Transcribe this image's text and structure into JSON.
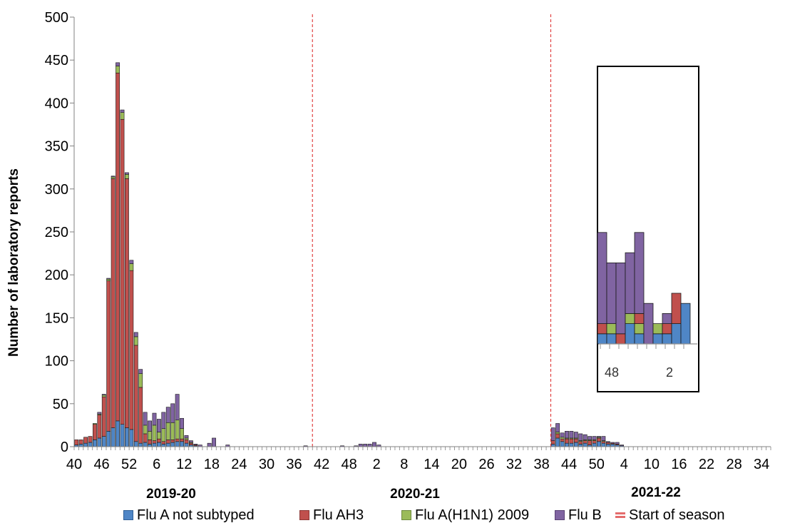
{
  "chart_data": {
    "type": "bar",
    "stacked": true,
    "ylabel": "Number of laboratory reports",
    "ylim": [
      0,
      500
    ],
    "yticks": [
      0,
      50,
      100,
      150,
      200,
      250,
      300,
      350,
      400,
      450,
      500
    ],
    "x_tick_labels": [
      "40",
      "46",
      "52",
      "6",
      "12",
      "18",
      "24",
      "30",
      "36",
      "42",
      "48",
      "2",
      "8",
      "14",
      "20",
      "26",
      "32",
      "38",
      "44",
      "50",
      "4",
      "10",
      "16",
      "22",
      "28",
      "34"
    ],
    "season_labels": [
      "2019-20",
      "2020-21",
      "2021-22"
    ],
    "season_starts_at_week_index": [
      52,
      104
    ],
    "start_season_color": "#E04040",
    "series": [
      {
        "name": "Flu A not subtyped",
        "color": "#4F86C6",
        "values": [
          2,
          3,
          4,
          5,
          8,
          10,
          12,
          18,
          22,
          30,
          26,
          22,
          20,
          6,
          4,
          5,
          3,
          4,
          5,
          3,
          4,
          5,
          6,
          6,
          4,
          2,
          1,
          0,
          0,
          0,
          0,
          0,
          0,
          0,
          0,
          0,
          0,
          0,
          0,
          0,
          0,
          0,
          0,
          0,
          0,
          0,
          0,
          0,
          0,
          0,
          0,
          0,
          0,
          0,
          0,
          0,
          0,
          0,
          0,
          0,
          0,
          0,
          0,
          0,
          0,
          0,
          0,
          0,
          0,
          0,
          0,
          0,
          0,
          0,
          0,
          0,
          0,
          0,
          0,
          0,
          0,
          0,
          0,
          0,
          0,
          0,
          0,
          0,
          0,
          0,
          0,
          0,
          0,
          0,
          0,
          0,
          0,
          0,
          0,
          0,
          0,
          0,
          0,
          0,
          3,
          10,
          6,
          4,
          4,
          5,
          3,
          4,
          2,
          4,
          6,
          4,
          3,
          3,
          2,
          1,
          0,
          0,
          0,
          0,
          0,
          0,
          0,
          0,
          0,
          0,
          0,
          0,
          0,
          0,
          0,
          0,
          0,
          0,
          0,
          0,
          0,
          0,
          0,
          0,
          0,
          0,
          0,
          0,
          0,
          0,
          0,
          0
        ]
      },
      {
        "name": "Flu AH3",
        "color": "#C0504D",
        "values": [
          6,
          5,
          7,
          7,
          18,
          27,
          46,
          175,
          290,
          405,
          355,
          290,
          185,
          112,
          65,
          10,
          5,
          3,
          4,
          3,
          4,
          3,
          3,
          3,
          4,
          2,
          1,
          0,
          0,
          0,
          0,
          0,
          0,
          0,
          0,
          0,
          0,
          0,
          0,
          0,
          0,
          0,
          0,
          0,
          0,
          0,
          0,
          0,
          0,
          0,
          0,
          0,
          0,
          0,
          0,
          0,
          0,
          0,
          0,
          0,
          0,
          0,
          0,
          0,
          0,
          0,
          0,
          0,
          0,
          0,
          0,
          0,
          0,
          0,
          0,
          0,
          0,
          0,
          0,
          0,
          0,
          0,
          0,
          0,
          0,
          0,
          0,
          0,
          0,
          0,
          0,
          0,
          0,
          0,
          0,
          0,
          0,
          0,
          0,
          0,
          0,
          0,
          0,
          0,
          4,
          5,
          3,
          5,
          5,
          4,
          3,
          3,
          5,
          3,
          4,
          2,
          2,
          1,
          1,
          0,
          0,
          0,
          0,
          0,
          0,
          0,
          0,
          0,
          0,
          0,
          0,
          0,
          0,
          0,
          0,
          0,
          0,
          0,
          0,
          0,
          0,
          0,
          0,
          0,
          0,
          0,
          0,
          0,
          0,
          0,
          0,
          0
        ]
      },
      {
        "name": "Flu A(H1N1) 2009",
        "color": "#9BBB59",
        "values": [
          0,
          0,
          0,
          0,
          1,
          1,
          2,
          2,
          2,
          8,
          8,
          5,
          8,
          10,
          16,
          10,
          10,
          18,
          8,
          15,
          20,
          20,
          22,
          12,
          2,
          1,
          0,
          0,
          0,
          0,
          0,
          0,
          0,
          0,
          0,
          0,
          0,
          0,
          0,
          0,
          0,
          0,
          0,
          0,
          0,
          0,
          0,
          0,
          0,
          0,
          0,
          0,
          0,
          0,
          0,
          0,
          0,
          0,
          0,
          0,
          0,
          0,
          0,
          0,
          0,
          0,
          0,
          0,
          0,
          0,
          0,
          0,
          0,
          0,
          0,
          0,
          0,
          0,
          0,
          0,
          0,
          0,
          0,
          0,
          0,
          0,
          0,
          0,
          0,
          0,
          0,
          0,
          0,
          0,
          0,
          0,
          0,
          0,
          0,
          0,
          0,
          0,
          0,
          0,
          0,
          2,
          2,
          1,
          1,
          1,
          1,
          1,
          1,
          1,
          1,
          1,
          0,
          0,
          0,
          0,
          0,
          0,
          0,
          0,
          0,
          0,
          0,
          0,
          0,
          0,
          0,
          0,
          0,
          0,
          0,
          0,
          0,
          0,
          0,
          0,
          0,
          0,
          0,
          0,
          0,
          0,
          0,
          0,
          0,
          0,
          0,
          0
        ]
      },
      {
        "name": "Flu B",
        "color": "#8064A2",
        "values": [
          0,
          0,
          0,
          0,
          0,
          2,
          1,
          1,
          1,
          4,
          3,
          2,
          4,
          5,
          5,
          15,
          12,
          14,
          15,
          19,
          18,
          22,
          30,
          12,
          3,
          2,
          1,
          2,
          0,
          4,
          10,
          0,
          0,
          2,
          0,
          0,
          0,
          0,
          0,
          0,
          0,
          0,
          0,
          0,
          0,
          0,
          0,
          0,
          0,
          0,
          1,
          0,
          0,
          0,
          0,
          0,
          0,
          0,
          1,
          0,
          0,
          1,
          3,
          3,
          3,
          5,
          2,
          0,
          0,
          0,
          0,
          0,
          0,
          0,
          0,
          0,
          0,
          0,
          0,
          0,
          0,
          0,
          0,
          0,
          0,
          0,
          0,
          0,
          0,
          0,
          0,
          0,
          0,
          0,
          0,
          0,
          0,
          0,
          0,
          0,
          0,
          0,
          0,
          0,
          15,
          10,
          5,
          8,
          8,
          7,
          8,
          6,
          4,
          4,
          1,
          5,
          1,
          1,
          2,
          1,
          0,
          0,
          0,
          0,
          0,
          0,
          0,
          0,
          0,
          0,
          0,
          0,
          0,
          0,
          0,
          0,
          0,
          0,
          0,
          0,
          0,
          0,
          0,
          0,
          0,
          0,
          0,
          0,
          0,
          0,
          0,
          0
        ]
      },
      {
        "name": "Start of season",
        "color": "#E04040"
      }
    ],
    "inset": {
      "x_tick_labels": [
        "48",
        "2"
      ],
      "series_values": {
        "Flu A not subtyped": [
          1,
          1,
          0,
          2,
          1,
          0,
          1,
          1,
          2,
          4,
          1,
          2,
          0,
          0
        ],
        "Flu A(H1N1) 2009": [
          0,
          1,
          0,
          1,
          1,
          0,
          1,
          0,
          0,
          0,
          0,
          0,
          0,
          0
        ],
        "Flu AH3": [
          1,
          0,
          1,
          0,
          1,
          0,
          0,
          1,
          3,
          0,
          1,
          0,
          0,
          0
        ],
        "Flu B": [
          9,
          6,
          7,
          6,
          8,
          4,
          0,
          1,
          0,
          0,
          2,
          1,
          1,
          1
        ]
      }
    }
  }
}
